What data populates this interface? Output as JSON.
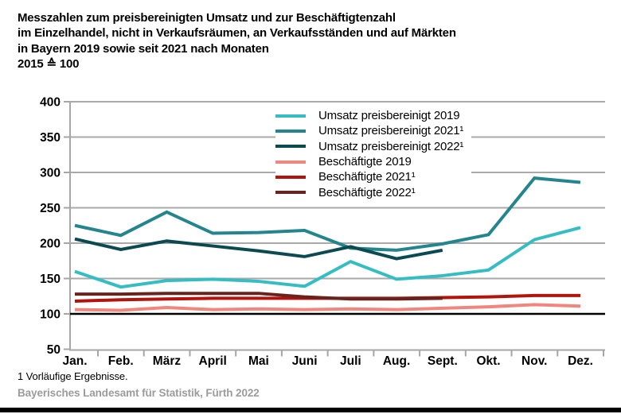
{
  "title": {
    "lines": [
      "Messzahlen zum preisbereinigten Umsatz und zur Beschäftigtenzahl",
      "im Einzelhandel, nicht in Verkaufsräumen, an Verkaufsständen und auf Märkten",
      "in Bayern 2019 sowie seit 2021 nach Monaten",
      "2015 ≙ 100"
    ]
  },
  "chart_data": {
    "type": "line",
    "categories": [
      "Jan.",
      "Feb.",
      "März",
      "April",
      "Mai",
      "Juni",
      "Juli",
      "Aug.",
      "Sept.",
      "Okt.",
      "Nov.",
      "Dez."
    ],
    "ylim": [
      50,
      400
    ],
    "yticks": [
      50,
      100,
      150,
      200,
      250,
      300,
      350,
      400
    ],
    "reference_line": 100,
    "grid": true,
    "legend_position": "top-right-inside",
    "axis_color": "#a6a6a6",
    "gridline_color": "#a9a9a9",
    "reference_line_color": "#000000",
    "series": [
      {
        "name": "Umsatz preisbereinigt 2019",
        "color": "#35bdc3",
        "values": [
          160,
          138,
          147,
          149,
          146,
          139,
          174,
          149,
          154,
          162,
          205,
          222
        ]
      },
      {
        "name": "Umsatz preisbereinigt 2021¹",
        "color": "#24858e",
        "values": [
          225,
          211,
          244,
          214,
          215,
          218,
          193,
          190,
          199,
          212,
          292,
          286
        ]
      },
      {
        "name": "Umsatz preisbereinigt 2022¹",
        "color": "#0c4a52",
        "values": [
          206,
          191,
          203,
          196,
          189,
          181,
          195,
          178,
          190,
          null,
          null,
          null
        ]
      },
      {
        "name": "Beschäftigte 2019",
        "color": "#f0877e",
        "values": [
          106,
          105,
          109,
          106,
          107,
          106,
          107,
          106,
          108,
          110,
          113,
          111
        ]
      },
      {
        "name": "Beschäftigte 2021¹",
        "color": "#b2140d",
        "values": [
          118,
          120,
          121,
          122,
          122,
          122,
          122,
          122,
          123,
          124,
          126,
          126
        ]
      },
      {
        "name": "Beschäftigte 2022¹",
        "color": "#69231e",
        "values": [
          128,
          128,
          129,
          129,
          129,
          124,
          121,
          121,
          122,
          null,
          null,
          null
        ]
      }
    ]
  },
  "footnote": "1 Vorläufige Ergebnisse.",
  "source": "Bayerisches Landesamt für Statistik, Fürth 2022"
}
